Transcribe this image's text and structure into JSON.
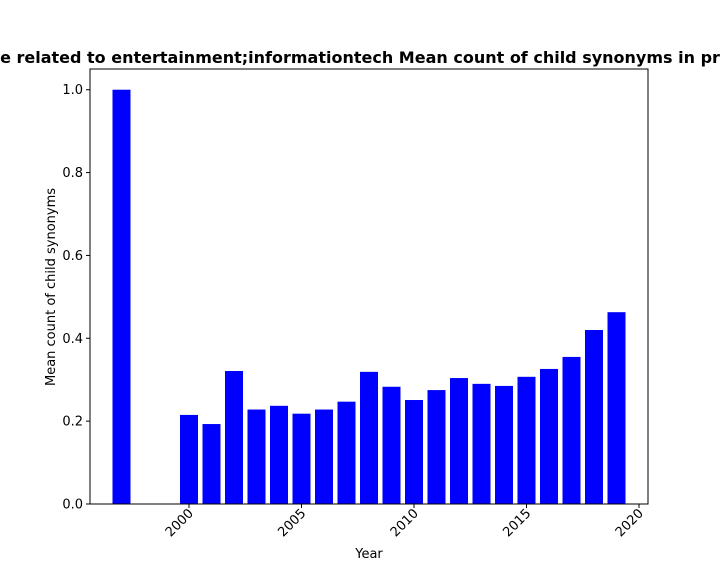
{
  "chart_data": {
    "type": "bar",
    "title": "Mean count of child synonyms in programming languages by year, for languages with type related to entertainment;informationtech Mean count of child synonyms in programming languages by year",
    "title_visible": "e related to entertainment;informationtech Mean count of child synonyms in pr",
    "xlabel": "Year",
    "ylabel": "Mean count of child synonyms",
    "bar_color": "#0000ff",
    "x": [
      1997,
      2000,
      2001,
      2002,
      2003,
      2004,
      2005,
      2006,
      2007,
      2008,
      2009,
      2010,
      2011,
      2012,
      2013,
      2014,
      2015,
      2016,
      2017,
      2018,
      2019
    ],
    "values": [
      1.0,
      0.215,
      0.193,
      0.321,
      0.228,
      0.237,
      0.218,
      0.228,
      0.247,
      0.319,
      0.283,
      0.251,
      0.275,
      0.304,
      0.29,
      0.285,
      0.307,
      0.326,
      0.355,
      0.42,
      0.463
    ],
    "xlim": [
      1995.6,
      2020.4
    ],
    "ylim": [
      0,
      1.05
    ],
    "xticks": [
      2000,
      2005,
      2010,
      2015,
      2020
    ],
    "xtick_labels": [
      "2000",
      "2005",
      "2010",
      "2015",
      "2020"
    ],
    "yticks": [
      0.0,
      0.2,
      0.4,
      0.6,
      0.8,
      1.0
    ],
    "ytick_labels": [
      "0.0",
      "0.2",
      "0.4",
      "0.6",
      "0.8",
      "1.0"
    ],
    "grid": false,
    "legend": "none"
  }
}
